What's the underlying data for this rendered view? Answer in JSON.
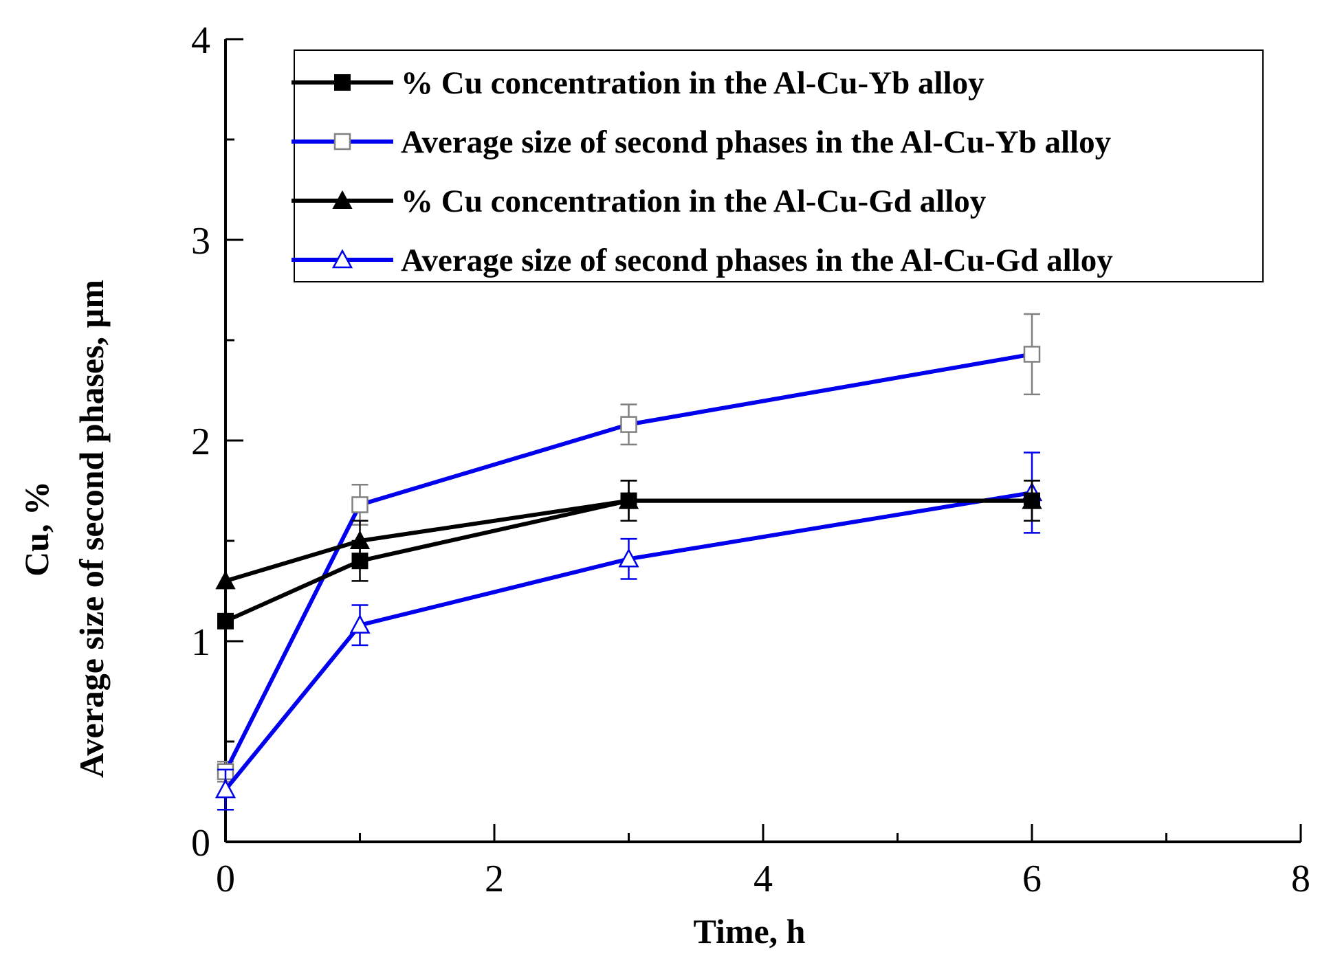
{
  "chart_data": {
    "type": "line",
    "title": "",
    "xlabel": "Time, h",
    "ylabel_lines": [
      "Cu, %",
      "Average size of second phases, µm"
    ],
    "xlim": [
      0,
      8
    ],
    "ylim": [
      0,
      4
    ],
    "x_ticks": [
      0,
      2,
      4,
      6,
      8
    ],
    "x_minor_ticks": [
      1,
      3,
      5,
      7
    ],
    "y_ticks": [
      0,
      1,
      2,
      3,
      4
    ],
    "y_minor_ticks": [
      0.5,
      1.5,
      2.5,
      3.5
    ],
    "tick_labels_x": [
      "0",
      "2",
      "4",
      "6",
      "8"
    ],
    "tick_labels_y": [
      "0",
      "1",
      "2",
      "3",
      "4"
    ],
    "grid": false,
    "legend_position": "top-right",
    "series": [
      {
        "name": "% Cu concentration in the Al-Cu-Yb alloy",
        "color": "#000000",
        "marker": "square-filled",
        "x": [
          0,
          1,
          3,
          6
        ],
        "y": [
          1.1,
          1.4,
          1.7,
          1.7
        ],
        "err": [
          0.0,
          0.1,
          0.1,
          0.1
        ]
      },
      {
        "name": "Average size of second phases in the Al-Cu-Yb alloy",
        "color": "#0000ee",
        "marker_color": "#808080",
        "marker": "square-open",
        "x": [
          0,
          1,
          3,
          6
        ],
        "y": [
          0.35,
          1.68,
          2.08,
          2.43
        ],
        "err": [
          0.05,
          0.1,
          0.1,
          0.2
        ]
      },
      {
        "name": "% Cu concentration in the Al-Cu-Gd alloy",
        "color": "#000000",
        "marker": "triangle-filled",
        "x": [
          0,
          1,
          3,
          6
        ],
        "y": [
          1.3,
          1.5,
          1.7,
          1.7
        ],
        "err": [
          0.0,
          0.1,
          0.1,
          0.1
        ]
      },
      {
        "name": "Average size of second phases in the Al-Cu-Gd alloy",
        "color": "#0000ee",
        "marker_color": "#0000ee",
        "marker": "triangle-open",
        "x": [
          0,
          1,
          3,
          6
        ],
        "y": [
          0.26,
          1.08,
          1.41,
          1.74
        ],
        "err": [
          0.1,
          0.1,
          0.1,
          0.2
        ]
      }
    ]
  }
}
